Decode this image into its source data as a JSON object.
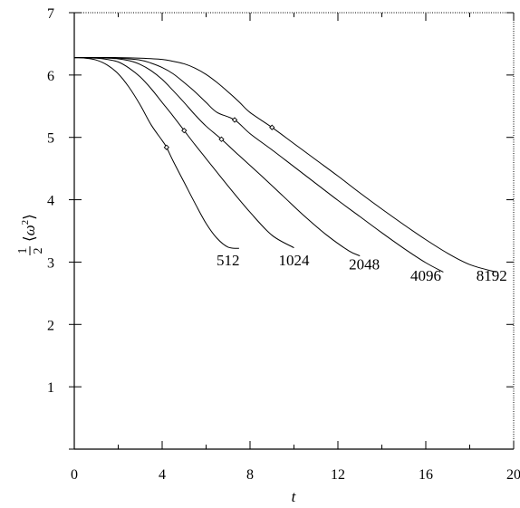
{
  "chart_data": {
    "type": "line",
    "title": "",
    "xlabel": "t",
    "ylabel": {
      "numerator": "1",
      "denominator": "2",
      "open": "⟨",
      "symbol": "ω",
      "power": "2",
      "close": "⟩"
    },
    "xlim": [
      0,
      20
    ],
    "ylim": [
      0,
      7
    ],
    "xticks": [
      0,
      4,
      8,
      12,
      16,
      20
    ],
    "yticks": [
      1,
      2,
      3,
      4,
      5,
      6,
      7
    ],
    "grid": false,
    "series": [
      {
        "name": "512",
        "x": [
          0,
          0.5,
          1,
          1.5,
          2,
          2.5,
          3,
          3.5,
          4,
          4.2,
          4.5,
          5,
          5.5,
          6,
          6.5,
          7,
          7.5
        ],
        "y": [
          6.28,
          6.27,
          6.24,
          6.16,
          6.02,
          5.8,
          5.52,
          5.2,
          4.95,
          4.84,
          4.62,
          4.28,
          3.94,
          3.62,
          3.38,
          3.24,
          3.22
        ],
        "marker": [
          4.2,
          4.84
        ],
        "label_at": [
          7.0,
          2.95
        ]
      },
      {
        "name": "1024",
        "x": [
          0,
          1,
          1.5,
          2,
          2.5,
          3,
          3.5,
          4,
          4.5,
          5,
          5.5,
          6,
          7,
          8,
          9,
          10
        ],
        "y": [
          6.28,
          6.27,
          6.25,
          6.21,
          6.11,
          5.97,
          5.78,
          5.56,
          5.34,
          5.11,
          4.88,
          4.66,
          4.22,
          3.8,
          3.43,
          3.23
        ],
        "marker": [
          5.0,
          5.11
        ],
        "label_at": [
          10.0,
          2.95
        ]
      },
      {
        "name": "2048",
        "x": [
          0,
          1,
          2,
          2.5,
          3,
          3.5,
          4,
          4.5,
          5,
          5.5,
          6,
          6.7,
          7.5,
          8.5,
          9.5,
          10.5,
          11.5,
          12.5,
          13
        ],
        "y": [
          6.28,
          6.28,
          6.26,
          6.23,
          6.17,
          6.07,
          5.93,
          5.75,
          5.56,
          5.36,
          5.18,
          4.97,
          4.71,
          4.39,
          4.06,
          3.73,
          3.43,
          3.18,
          3.1
        ],
        "marker": [
          6.7,
          4.97
        ],
        "label_at": [
          13.2,
          2.88
        ]
      },
      {
        "name": "4096",
        "x": [
          0,
          1,
          2,
          3,
          3.5,
          4,
          4.5,
          5,
          5.5,
          6,
          6.5,
          7.3,
          8,
          9,
          10,
          11,
          12,
          13,
          14,
          15,
          16,
          16.8
        ],
        "y": [
          6.28,
          6.28,
          6.27,
          6.24,
          6.19,
          6.12,
          6.02,
          5.88,
          5.73,
          5.56,
          5.4,
          5.28,
          5.06,
          4.8,
          4.53,
          4.26,
          3.99,
          3.73,
          3.47,
          3.22,
          2.99,
          2.84
        ],
        "marker": [
          7.3,
          5.28
        ],
        "label_at": [
          16.0,
          2.7
        ]
      },
      {
        "name": "8192",
        "x": [
          0,
          1,
          2,
          3,
          4,
          4.5,
          5,
          5.5,
          6,
          6.5,
          7,
          7.5,
          8,
          9,
          10,
          11,
          12,
          13,
          14,
          15,
          16,
          17,
          18,
          19.2
        ],
        "y": [
          6.28,
          6.28,
          6.28,
          6.27,
          6.25,
          6.22,
          6.18,
          6.11,
          6.01,
          5.88,
          5.73,
          5.57,
          5.4,
          5.16,
          4.9,
          4.64,
          4.38,
          4.11,
          3.85,
          3.6,
          3.36,
          3.14,
          2.96,
          2.84
        ],
        "marker": [
          9.0,
          5.16
        ],
        "label_at": [
          19.0,
          2.7
        ]
      }
    ]
  }
}
